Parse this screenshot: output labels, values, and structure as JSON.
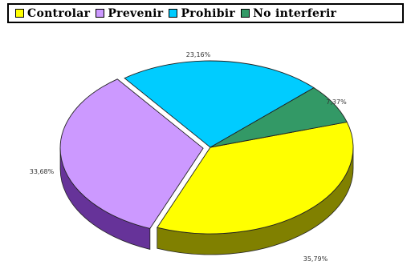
{
  "chart_data": {
    "type": "pie",
    "style": "3d-exploded",
    "categories": [
      "Controlar",
      "Prevenir",
      "Prohibir",
      "No interferir"
    ],
    "values": [
      35.79,
      33.68,
      23.16,
      7.37
    ],
    "value_labels": [
      "35,79%",
      "33,68%",
      "23,16%",
      "7,37%"
    ],
    "colors": [
      "#ffff00",
      "#cc99ff",
      "#00ccff",
      "#339966"
    ],
    "side_colors": [
      "#808000",
      "#663399",
      "#0a6b86",
      "#1c5e3a"
    ],
    "legend_position": "top"
  }
}
